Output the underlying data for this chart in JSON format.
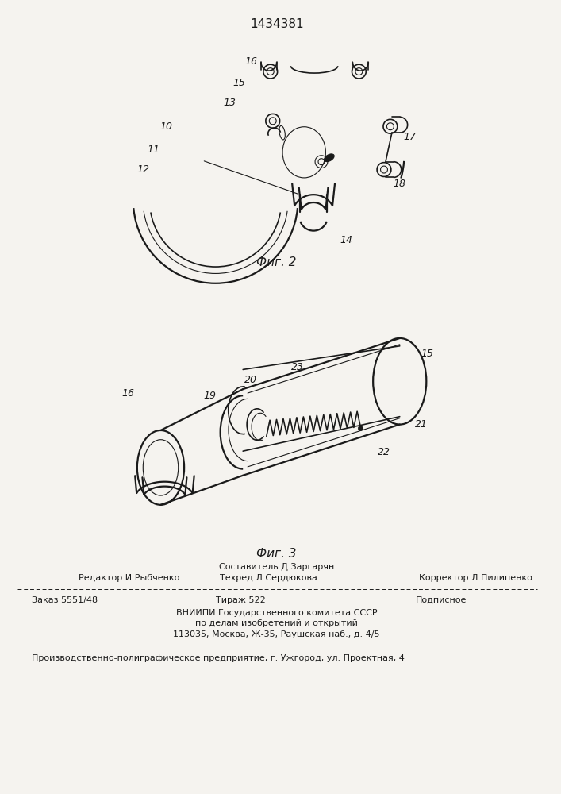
{
  "patent_number": "1434381",
  "fig2_label": "Фиг. 2",
  "fig3_label": "Фиг. 3",
  "bg_color": "#f5f3ef",
  "line_color": "#1a1a1a",
  "footer_line1_left": "Редактор И.Рыбченко",
  "footer_line1_center_top": "Составитель Д.Заргарян",
  "footer_line1_center": "Техред Л.Сердюкова",
  "footer_line1_right": "Корректор Л.Пилипенко",
  "footer_line2_left": "Заказ 5551/48",
  "footer_line2_center": "Тираж 522",
  "footer_line2_right": "Подписное",
  "footer_line3": "ВНИИПИ Государственного комитета СССР",
  "footer_line4": "по делам изобретений и открытий",
  "footer_line5": "113035, Москва, Ж-35, Раушская наб., д. 4/5",
  "footer_line6": "Производственно-полиграфическое предприятие, г. Ужгород, ул. Проектная, 4"
}
